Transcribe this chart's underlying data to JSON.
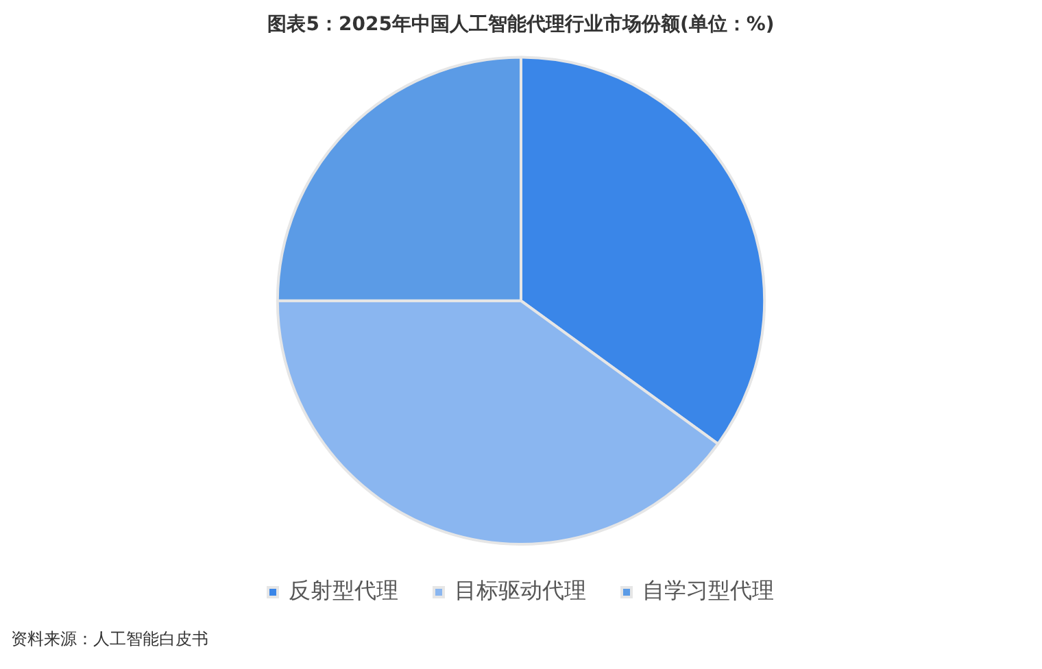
{
  "chart_data": {
    "type": "pie",
    "title": "图表5：2025年中国人工智能代理行业市场份额(单位：%)",
    "categories": [
      "反射型代理",
      "目标驱动代理",
      "自学习型代理"
    ],
    "values": [
      35,
      40,
      25
    ],
    "colors": [
      "#3a86e8",
      "#8ab6f0",
      "#5b9be6"
    ],
    "legend": "bottom",
    "annotations": [
      "资料来源：人工智能白皮书"
    ]
  }
}
